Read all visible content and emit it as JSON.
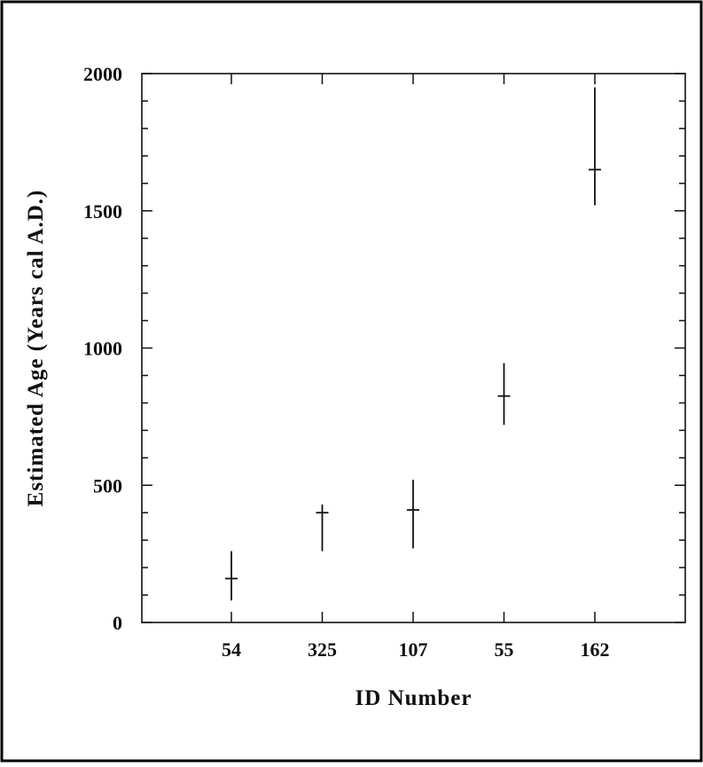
{
  "chart_data": {
    "type": "scatter",
    "title": "",
    "xlabel": "ID Number",
    "ylabel": "Estimated Age (Years cal A.D.)",
    "categories": [
      "54",
      "325",
      "107",
      "55",
      "162"
    ],
    "ylim": [
      0,
      2000
    ],
    "yticks": [
      0,
      500,
      1000,
      1500,
      2000
    ],
    "y_minor_step": 100,
    "grid": false,
    "legend": "none",
    "series": [
      {
        "values": [
          160,
          400,
          410,
          825,
          1650
        ],
        "error_low": [
          80,
          260,
          270,
          720,
          1520
        ],
        "error_high": [
          260,
          430,
          520,
          945,
          1950
        ]
      }
    ],
    "colors": {
      "frame": "#000000",
      "marks": "#111111"
    }
  }
}
